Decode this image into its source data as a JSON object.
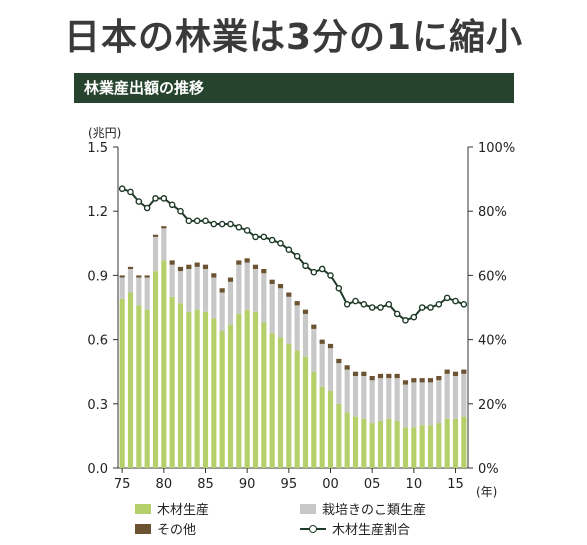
{
  "headline": "日本の林業は3分の1に縮小",
  "banner": "林業産出額の推移",
  "colors": {
    "timber": "#b5cf6b",
    "mushroom": "#c8c8c8",
    "other": "#6b5230",
    "share_line": "#1f3a28",
    "banner_bg": "#26432e"
  },
  "legend": {
    "timber": "木材生産",
    "mushroom": "栽培きのこ類生産",
    "other": "その他",
    "share": "木材生産割合"
  },
  "chart_data": {
    "type": "bar",
    "stacked": true,
    "years": [
      1975,
      1976,
      1977,
      1978,
      1979,
      1980,
      1981,
      1982,
      1983,
      1984,
      1985,
      1986,
      1987,
      1988,
      1989,
      1990,
      1991,
      1992,
      1993,
      1994,
      1995,
      1996,
      1997,
      1998,
      1999,
      2000,
      2001,
      2002,
      2003,
      2004,
      2005,
      2006,
      2007,
      2008,
      2009,
      2010,
      2011,
      2012,
      2013,
      2014,
      2015,
      2016
    ],
    "x_tick_labels": [
      "75",
      "80",
      "85",
      "90",
      "95",
      "00",
      "05",
      "10",
      "15"
    ],
    "x_tick_years": [
      1975,
      1980,
      1985,
      1990,
      1995,
      2000,
      2005,
      2010,
      2015
    ],
    "x_unit": "(年)",
    "y_left_unit": "(兆円)",
    "y_left_ticks": [
      "0.0",
      "0.3",
      "0.6",
      "0.9",
      "1.2",
      "1.5"
    ],
    "y_left_range": [
      0,
      1.5
    ],
    "y_right_ticks": [
      "0%",
      "20%",
      "40%",
      "60%",
      "80%",
      "100%"
    ],
    "y_right_range": [
      0,
      100
    ],
    "series": [
      {
        "name": "木材生産",
        "key": "timber",
        "values": [
          0.79,
          0.82,
          0.76,
          0.74,
          0.92,
          0.97,
          0.8,
          0.77,
          0.73,
          0.74,
          0.73,
          0.7,
          0.64,
          0.67,
          0.72,
          0.74,
          0.73,
          0.68,
          0.63,
          0.61,
          0.58,
          0.55,
          0.52,
          0.45,
          0.38,
          0.36,
          0.3,
          0.26,
          0.24,
          0.23,
          0.21,
          0.22,
          0.23,
          0.22,
          0.19,
          0.19,
          0.2,
          0.2,
          0.21,
          0.23,
          0.23,
          0.24
        ]
      },
      {
        "name": "栽培きのこ類生産",
        "key": "mushroom",
        "values": [
          0.1,
          0.11,
          0.13,
          0.15,
          0.16,
          0.15,
          0.15,
          0.15,
          0.2,
          0.2,
          0.2,
          0.19,
          0.18,
          0.2,
          0.23,
          0.22,
          0.2,
          0.23,
          0.23,
          0.23,
          0.22,
          0.21,
          0.2,
          0.2,
          0.2,
          0.2,
          0.19,
          0.2,
          0.19,
          0.2,
          0.2,
          0.2,
          0.19,
          0.2,
          0.2,
          0.21,
          0.2,
          0.2,
          0.2,
          0.21,
          0.2,
          0.2
        ]
      },
      {
        "name": "その他",
        "key": "other",
        "values": [
          0.01,
          0.01,
          0.01,
          0.01,
          0.01,
          0.01,
          0.02,
          0.02,
          0.02,
          0.02,
          0.02,
          0.02,
          0.02,
          0.02,
          0.02,
          0.02,
          0.02,
          0.02,
          0.02,
          0.02,
          0.02,
          0.02,
          0.02,
          0.02,
          0.02,
          0.02,
          0.02,
          0.02,
          0.02,
          0.02,
          0.02,
          0.02,
          0.02,
          0.02,
          0.02,
          0.02,
          0.02,
          0.02,
          0.02,
          0.02,
          0.02,
          0.02
        ]
      },
      {
        "name": "木材生産割合",
        "key": "share",
        "axis": "right",
        "type": "line",
        "values": [
          87,
          86,
          83,
          81,
          84,
          84,
          82,
          80,
          77,
          77,
          77,
          76,
          76,
          76,
          75,
          74,
          72,
          72,
          71,
          70,
          68,
          66,
          63,
          61,
          62,
          60,
          56,
          51,
          52,
          51,
          50,
          50,
          51,
          48,
          46,
          47,
          50,
          50,
          51,
          53,
          52,
          51
        ]
      }
    ]
  }
}
